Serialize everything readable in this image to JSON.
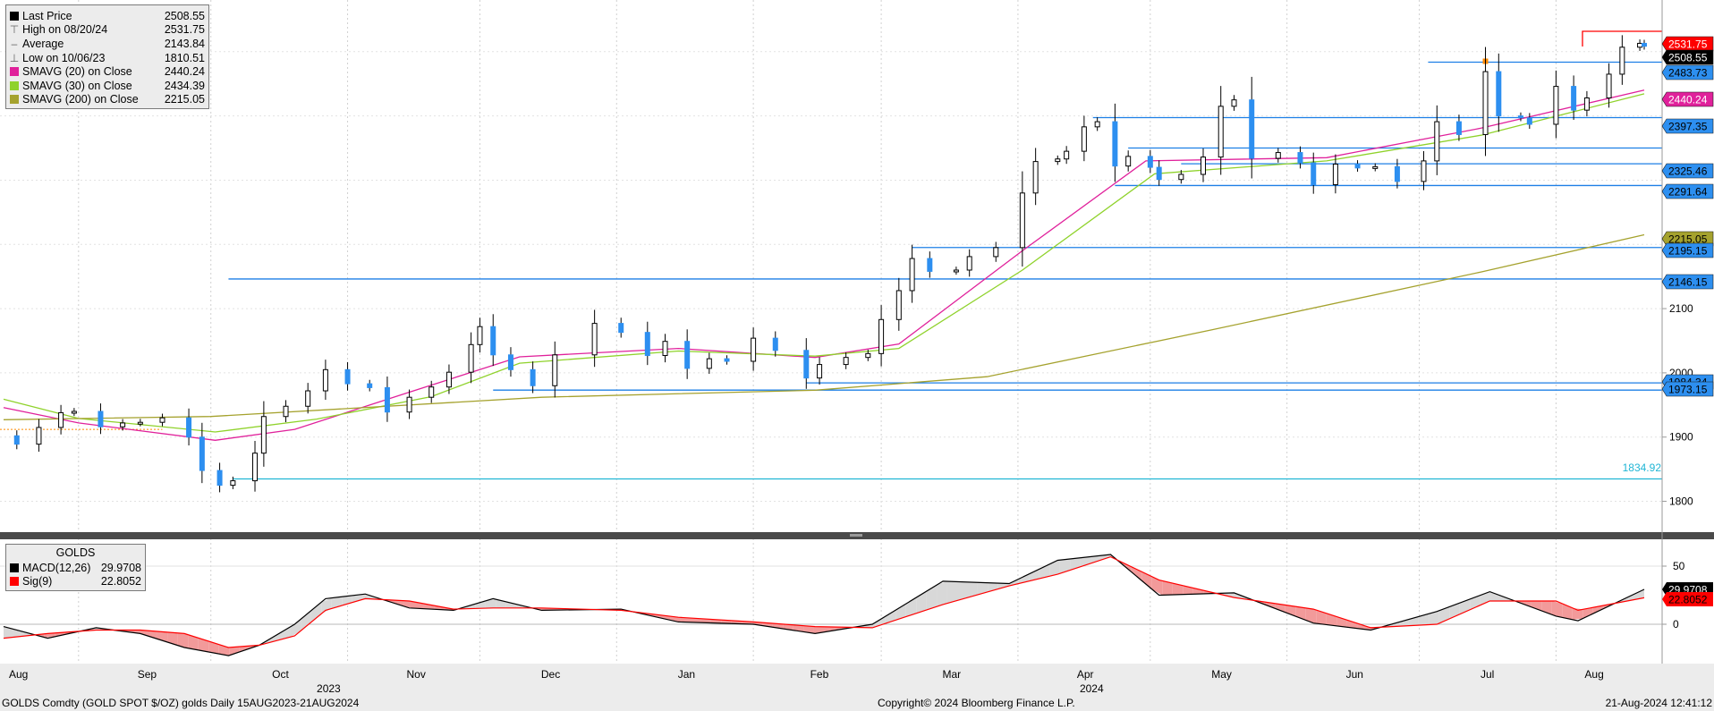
{
  "legend": {
    "items": [
      {
        "icon": "last-price-swatch",
        "color": "#000000",
        "label": "Last Price",
        "value": "2508.55"
      },
      {
        "icon": "high-marker-icon",
        "color": "#666666",
        "label": "High on 08/20/24",
        "value": "2531.75"
      },
      {
        "icon": "average-marker-icon",
        "color": "#666666",
        "label": "Average",
        "value": "2143.84"
      },
      {
        "icon": "low-marker-icon",
        "color": "#666666",
        "label": "Low on 10/06/23",
        "value": "1810.51"
      },
      {
        "icon": "smavg20-swatch",
        "color": "#e0219b",
        "label": "SMAVG (20)  on Close",
        "value": "2440.24"
      },
      {
        "icon": "smavg30-swatch",
        "color": "#8fd22b",
        "label": "SMAVG (30)  on Close",
        "value": "2434.39"
      },
      {
        "icon": "smavg200-swatch",
        "color": "#a5a22e",
        "label": "SMAVG (200)  on Close",
        "value": "2215.05"
      }
    ]
  },
  "macd_legend": {
    "title": "GOLDS",
    "items": [
      {
        "icon": "macd-swatch",
        "color": "#000000",
        "label": "MACD(12,26)",
        "value": "29.9708"
      },
      {
        "icon": "signal-swatch",
        "color": "#ff0000",
        "label": "Sig(9)",
        "value": "22.8052"
      }
    ]
  },
  "right_axis_labels": [
    {
      "value": "2531.75",
      "bg": "#ff0000",
      "fg": "#ffffff"
    },
    {
      "value": "2508.55",
      "bg": "#000000",
      "fg": "#ffffff"
    },
    {
      "value": "2483.73",
      "bg": "#2d8ff0",
      "fg": "#000000"
    },
    {
      "value": "2440.24",
      "bg": "#e0219b",
      "fg": "#ffffff"
    },
    {
      "value": "2397.35",
      "bg": "#2d8ff0",
      "fg": "#000000"
    },
    {
      "value": "2325.46",
      "bg": "#2d8ff0",
      "fg": "#000000"
    },
    {
      "value": "2291.64",
      "bg": "#2d8ff0",
      "fg": "#000000"
    },
    {
      "value": "2215.05",
      "bg": "#a5a22e",
      "fg": "#000000"
    },
    {
      "value": "2195.15",
      "bg": "#2d8ff0",
      "fg": "#000000"
    },
    {
      "value": "2146.15",
      "bg": "#2d8ff0",
      "fg": "#000000"
    },
    {
      "value": "1984.34",
      "bg": "#2d8ff0",
      "fg": "#000000"
    },
    {
      "value": "1973.15",
      "bg": "#2d8ff0",
      "fg": "#000000"
    }
  ],
  "annotation_low": "1834.92",
  "footer": {
    "left": "GOLDS Comdty (GOLD SPOT $/OZ) golds  Daily 15AUG2023-21AUG2024",
    "center": "Copyright© 2024 Bloomberg Finance L.P.",
    "right": "21-Aug-2024 12:41:12"
  },
  "chart_data": [
    {
      "type": "candlestick",
      "title": "",
      "y_ticks": [
        1800,
        1900,
        2000,
        2100
      ],
      "ylim": [
        1740,
        2560
      ],
      "grid": true,
      "legend_position": "top-left",
      "x_month_labels": [
        "Aug",
        "Sep",
        "Oct",
        "Nov",
        "Dec",
        "Jan",
        "Feb",
        "Mar",
        "Apr",
        "May",
        "Jun",
        "Jul",
        "Aug"
      ],
      "x_year_labels": [
        "2023",
        "2024"
      ],
      "close_series": [
        [
          "2023-08-15",
          1902
        ],
        [
          "2023-08-18",
          1889
        ],
        [
          "2023-08-23",
          1915
        ],
        [
          "2023-08-28",
          1938
        ],
        [
          "2023-08-31",
          1940
        ],
        [
          "2023-09-06",
          1916
        ],
        [
          "2023-09-11",
          1922
        ],
        [
          "2023-09-15",
          1923
        ],
        [
          "2023-09-20",
          1930
        ],
        [
          "2023-09-26",
          1900
        ],
        [
          "2023-09-29",
          1848
        ],
        [
          "2023-10-03",
          1825
        ],
        [
          "2023-10-06",
          1832
        ],
        [
          "2023-10-11",
          1875
        ],
        [
          "2023-10-13",
          1932
        ],
        [
          "2023-10-18",
          1948
        ],
        [
          "2023-10-23",
          1972
        ],
        [
          "2023-10-27",
          2005
        ],
        [
          "2023-11-01",
          1983
        ],
        [
          "2023-11-06",
          1977
        ],
        [
          "2023-11-10",
          1939
        ],
        [
          "2023-11-15",
          1962
        ],
        [
          "2023-11-20",
          1978
        ],
        [
          "2023-11-24",
          2001
        ],
        [
          "2023-11-29",
          2044
        ],
        [
          "2023-12-01",
          2072
        ],
        [
          "2023-12-04",
          2028
        ],
        [
          "2023-12-08",
          2005
        ],
        [
          "2023-12-13",
          1980
        ],
        [
          "2023-12-18",
          2028
        ],
        [
          "2023-12-27",
          2077
        ],
        [
          "2024-01-02",
          2063
        ],
        [
          "2024-01-08",
          2027
        ],
        [
          "2024-01-12",
          2049
        ],
        [
          "2024-01-17",
          2007
        ],
        [
          "2024-01-22",
          2022
        ],
        [
          "2024-01-26",
          2018
        ],
        [
          "2024-02-01",
          2054
        ],
        [
          "2024-02-06",
          2035
        ],
        [
          "2024-02-13",
          1992
        ],
        [
          "2024-02-16",
          2013
        ],
        [
          "2024-02-22",
          2024
        ],
        [
          "2024-02-27",
          2030
        ],
        [
          "2024-03-01",
          2083
        ],
        [
          "2024-03-05",
          2128
        ],
        [
          "2024-03-08",
          2178
        ],
        [
          "2024-03-12",
          2158
        ],
        [
          "2024-03-18",
          2160
        ],
        [
          "2024-03-21",
          2181
        ],
        [
          "2024-03-27",
          2195
        ],
        [
          "2024-04-02",
          2280
        ],
        [
          "2024-04-05",
          2329
        ],
        [
          "2024-04-10",
          2333
        ],
        [
          "2024-04-12",
          2345
        ],
        [
          "2024-04-16",
          2383
        ],
        [
          "2024-04-19",
          2391
        ],
        [
          "2024-04-23",
          2322
        ],
        [
          "2024-04-26",
          2337
        ],
        [
          "2024-05-01",
          2320
        ],
        [
          "2024-05-03",
          2301
        ],
        [
          "2024-05-08",
          2309
        ],
        [
          "2024-05-13",
          2336
        ],
        [
          "2024-05-17",
          2415
        ],
        [
          "2024-05-20",
          2425
        ],
        [
          "2024-05-24",
          2334
        ],
        [
          "2024-05-30",
          2343
        ],
        [
          "2024-06-04",
          2327
        ],
        [
          "2024-06-07",
          2293
        ],
        [
          "2024-06-12",
          2325
        ],
        [
          "2024-06-17",
          2319
        ],
        [
          "2024-06-21",
          2321
        ],
        [
          "2024-06-26",
          2298
        ],
        [
          "2024-07-02",
          2330
        ],
        [
          "2024-07-05",
          2391
        ],
        [
          "2024-07-10",
          2371
        ],
        [
          "2024-07-16",
          2469
        ],
        [
          "2024-07-19",
          2400
        ],
        [
          "2024-07-24",
          2397
        ],
        [
          "2024-07-26",
          2387
        ],
        [
          "2024-08-01",
          2446
        ],
        [
          "2024-08-05",
          2409
        ],
        [
          "2024-08-08",
          2428
        ],
        [
          "2024-08-13",
          2465
        ],
        [
          "2024-08-16",
          2507
        ],
        [
          "2024-08-20",
          2513
        ],
        [
          "2024-08-21",
          2508.55
        ]
      ],
      "overlays": [
        {
          "name": "SMAVG (20)  on Close",
          "color": "#e0219b",
          "values": [
            [
              "2023-08-15",
              1946
            ],
            [
              "2023-09-01",
              1922
            ],
            [
              "2023-10-02",
              1895
            ],
            [
              "2023-10-20",
              1912
            ],
            [
              "2023-11-15",
              1970
            ],
            [
              "2023-12-10",
              2025
            ],
            [
              "2024-01-15",
              2038
            ],
            [
              "2024-02-15",
              2024
            ],
            [
              "2024-03-05",
              2045
            ],
            [
              "2024-04-02",
              2190
            ],
            [
              "2024-04-30",
              2330
            ],
            [
              "2024-06-10",
              2335
            ],
            [
              "2024-07-15",
              2381
            ],
            [
              "2024-08-21",
              2440.24
            ]
          ]
        },
        {
          "name": "SMAVG (30)  on Close",
          "color": "#8fd22b",
          "values": [
            [
              "2023-08-15",
              1959
            ],
            [
              "2023-09-01",
              1929
            ],
            [
              "2023-10-02",
              1908
            ],
            [
              "2023-10-25",
              1928
            ],
            [
              "2023-11-20",
              1963
            ],
            [
              "2023-12-10",
              2015
            ],
            [
              "2024-01-15",
              2034
            ],
            [
              "2024-02-15",
              2026
            ],
            [
              "2024-03-05",
              2038
            ],
            [
              "2024-04-02",
              2160
            ],
            [
              "2024-05-02",
              2310
            ],
            [
              "2024-06-10",
              2330
            ],
            [
              "2024-07-15",
              2370
            ],
            [
              "2024-08-21",
              2434.39
            ]
          ]
        },
        {
          "name": "SMAVG (200)  on Close",
          "color": "#a5a22e",
          "values": [
            [
              "2023-08-15",
              1927
            ],
            [
              "2023-10-01",
              1932
            ],
            [
              "2023-12-15",
              1962
            ],
            [
              "2024-02-15",
              1973
            ],
            [
              "2024-03-25",
              1994
            ],
            [
              "2024-05-15",
              2067
            ],
            [
              "2024-07-15",
              2157
            ],
            [
              "2024-08-21",
              2215.05
            ]
          ]
        }
      ],
      "horizontal_levels": [
        2531.75,
        2483.73,
        2397.35,
        2350,
        2325.46,
        2291.64,
        2195.15,
        2146.15,
        1984.34,
        1973.15,
        1834.92
      ],
      "high": {
        "date": "08/20/24",
        "value": 2531.75
      },
      "low": {
        "date": "10/06/23",
        "value": 1810.51
      },
      "average": 2143.84,
      "last": 2508.55
    },
    {
      "type": "line",
      "title": "GOLDS",
      "y_ticks": [
        0,
        50
      ],
      "ylim": [
        -35,
        70
      ],
      "series": [
        {
          "name": "MACD(12,26)",
          "color": "#000000",
          "values": [
            [
              "2023-08-15",
              -2
            ],
            [
              "2023-08-25",
              -12
            ],
            [
              "2023-09-05",
              -3
            ],
            [
              "2023-09-15",
              -8
            ],
            [
              "2023-09-25",
              -20
            ],
            [
              "2023-10-05",
              -27
            ],
            [
              "2023-10-12",
              -18
            ],
            [
              "2023-10-20",
              0
            ],
            [
              "2023-10-27",
              22
            ],
            [
              "2023-11-05",
              26
            ],
            [
              "2023-11-15",
              14
            ],
            [
              "2023-11-25",
              12
            ],
            [
              "2023-12-04",
              22
            ],
            [
              "2023-12-15",
              12
            ],
            [
              "2024-01-02",
              13
            ],
            [
              "2024-01-15",
              2
            ],
            [
              "2024-02-01",
              0
            ],
            [
              "2024-02-15",
              -8
            ],
            [
              "2024-02-28",
              0
            ],
            [
              "2024-03-15",
              37
            ],
            [
              "2024-03-30",
              35
            ],
            [
              "2024-04-10",
              55
            ],
            [
              "2024-04-22",
              60
            ],
            [
              "2024-05-03",
              25
            ],
            [
              "2024-05-20",
              27
            ],
            [
              "2024-06-07",
              1
            ],
            [
              "2024-06-20",
              -5
            ],
            [
              "2024-07-05",
              11
            ],
            [
              "2024-07-17",
              28
            ],
            [
              "2024-08-01",
              7
            ],
            [
              "2024-08-06",
              3
            ],
            [
              "2024-08-21",
              29.9708
            ]
          ]
        },
        {
          "name": "Sig(9)",
          "color": "#ff0000",
          "values": [
            [
              "2023-08-15",
              -12
            ],
            [
              "2023-08-25",
              -8
            ],
            [
              "2023-09-05",
              -5
            ],
            [
              "2023-09-15",
              -5
            ],
            [
              "2023-09-25",
              -8
            ],
            [
              "2023-10-05",
              -20
            ],
            [
              "2023-10-12",
              -18
            ],
            [
              "2023-10-20",
              -10
            ],
            [
              "2023-10-27",
              12
            ],
            [
              "2023-11-05",
              22
            ],
            [
              "2023-11-15",
              20
            ],
            [
              "2023-11-25",
              13
            ],
            [
              "2023-12-04",
              14
            ],
            [
              "2023-12-15",
              14
            ],
            [
              "2024-01-02",
              12
            ],
            [
              "2024-01-15",
              6
            ],
            [
              "2024-02-01",
              2
            ],
            [
              "2024-02-15",
              -2
            ],
            [
              "2024-02-28",
              -3
            ],
            [
              "2024-03-15",
              17
            ],
            [
              "2024-03-30",
              33
            ],
            [
              "2024-04-10",
              43
            ],
            [
              "2024-04-22",
              58
            ],
            [
              "2024-05-03",
              38
            ],
            [
              "2024-05-20",
              23
            ],
            [
              "2024-06-07",
              13
            ],
            [
              "2024-06-20",
              -3
            ],
            [
              "2024-07-05",
              0
            ],
            [
              "2024-07-17",
              20
            ],
            [
              "2024-08-01",
              20
            ],
            [
              "2024-08-06",
              12
            ],
            [
              "2024-08-21",
              22.8052
            ]
          ]
        }
      ]
    }
  ]
}
